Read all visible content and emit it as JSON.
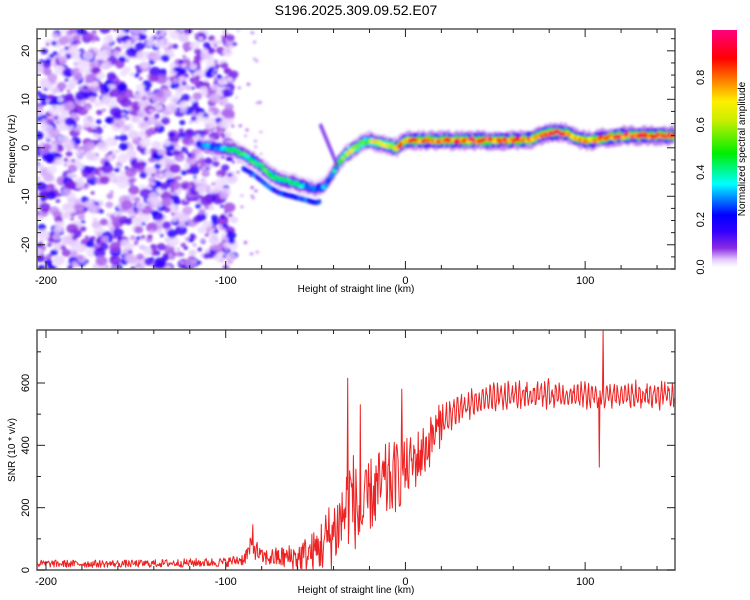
{
  "title": "S196.2025.309.09.52.E07",
  "chart_data": [
    {
      "type": "heatmap",
      "name": "spectrogram",
      "title": "S196.2025.309.09.52.E07",
      "xlabel": "Height of straight line (km)",
      "ylabel": "Frequency (Hz)",
      "xlim": [
        -205,
        150
      ],
      "ylim": [
        -25,
        24.5
      ],
      "xticks": [
        -200,
        -100,
        0,
        100
      ],
      "xtick_labels": [
        "-200",
        "-100",
        "0",
        "100"
      ],
      "xminor_step": 20,
      "yticks": [
        -20,
        -10,
        0,
        10,
        20
      ],
      "ytick_labels": [
        "-20",
        "-10",
        "0",
        "10",
        "20"
      ],
      "yminor_step": 2.5,
      "noise_region_km": [
        -205,
        -105
      ],
      "ridge": {
        "x": [
          -115,
          -110,
          -105,
          -100,
          -95,
          -90,
          -85,
          -80,
          -75,
          -70,
          -65,
          -60,
          -55,
          -50,
          -45,
          -42,
          -40,
          -37,
          -35,
          -30,
          -25,
          -20,
          -15,
          -10,
          -5,
          0,
          10,
          20,
          30,
          40,
          50,
          60,
          70,
          75,
          80,
          85,
          90,
          95,
          100,
          105,
          110,
          120,
          130,
          140,
          150
        ],
        "frequency_hz": [
          0.5,
          0.5,
          0.0,
          -0.2,
          -0.5,
          -1.5,
          -2.5,
          -4.0,
          -5.5,
          -6.5,
          -7.0,
          -7.5,
          -8.0,
          -8.5,
          -8.0,
          -6.0,
          -5.0,
          -3.0,
          -2.0,
          -0.5,
          0.8,
          1.5,
          1.0,
          0.5,
          0.0,
          1.5,
          1.5,
          1.5,
          1.5,
          1.5,
          1.5,
          1.5,
          1.8,
          2.5,
          3.0,
          3.2,
          3.0,
          2.0,
          1.5,
          1.5,
          2.0,
          2.5,
          2.5,
          2.5,
          2.5
        ],
        "amplitude": [
          0.25,
          0.3,
          0.35,
          0.4,
          0.45,
          0.5,
          0.45,
          0.5,
          0.55,
          0.5,
          0.45,
          0.5,
          0.35,
          0.3,
          0.35,
          0.3,
          0.4,
          0.55,
          0.6,
          0.7,
          0.65,
          0.6,
          0.75,
          0.7,
          0.8,
          0.85,
          0.9,
          0.88,
          0.9,
          0.95,
          0.92,
          0.88,
          0.9,
          0.95,
          0.97,
          0.95,
          0.9,
          0.85,
          0.9,
          0.85,
          0.9,
          0.95,
          0.95,
          0.95,
          0.95
        ]
      },
      "colorbar": {
        "label": "Normalized spectral amplitude",
        "range": [
          0.0,
          1.0
        ],
        "ticks": [
          0.0,
          0.2,
          0.4,
          0.6,
          0.8
        ],
        "tick_labels": [
          "0.0",
          "0.2",
          "0.4",
          "0.6",
          "0.8"
        ],
        "stops": [
          {
            "v": 0.0,
            "color": "#ffffff"
          },
          {
            "v": 0.03,
            "color": "#e6ccff"
          },
          {
            "v": 0.08,
            "color": "#8a2be2"
          },
          {
            "v": 0.15,
            "color": "#3300ff"
          },
          {
            "v": 0.22,
            "color": "#0000ff"
          },
          {
            "v": 0.3,
            "color": "#0099ff"
          },
          {
            "v": 0.35,
            "color": "#00ffff"
          },
          {
            "v": 0.48,
            "color": "#00ee00"
          },
          {
            "v": 0.62,
            "color": "#ccee00"
          },
          {
            "v": 0.7,
            "color": "#ffee00"
          },
          {
            "v": 0.78,
            "color": "#ff8800"
          },
          {
            "v": 0.88,
            "color": "#ff0000"
          },
          {
            "v": 1.0,
            "color": "#ff0080"
          }
        ]
      }
    },
    {
      "type": "line",
      "name": "snr",
      "xlabel": "Height of straight line (km)",
      "ylabel": "SNR (10 * v/v)",
      "xlim": [
        -205,
        150
      ],
      "ylim": [
        0,
        770
      ],
      "xticks": [
        -200,
        -100,
        0,
        100
      ],
      "xtick_labels": [
        "-200",
        "-100",
        "0",
        "100"
      ],
      "xminor_step": 20,
      "yticks": [
        0,
        200,
        400,
        600
      ],
      "ytick_labels": [
        "0",
        "200",
        "400",
        "600"
      ],
      "yminor_step": 100,
      "color": "#ee2222",
      "envelope": {
        "x": [
          -205,
          -150,
          -100,
          -90,
          -85,
          -80,
          -70,
          -60,
          -50,
          -45,
          -40,
          -35,
          -30,
          -25,
          -20,
          -10,
          0,
          10,
          20,
          30,
          40,
          60,
          80,
          100,
          108,
          110,
          112,
          120,
          150
        ],
        "mean": [
          20,
          20,
          25,
          35,
          80,
          40,
          40,
          40,
          60,
          90,
          120,
          170,
          250,
          150,
          240,
          280,
          320,
          380,
          470,
          520,
          540,
          560,
          565,
          560,
          560,
          560,
          560,
          560,
          560
        ],
        "spread": [
          12,
          12,
          15,
          20,
          40,
          25,
          35,
          50,
          70,
          100,
          120,
          130,
          160,
          120,
          120,
          130,
          100,
          90,
          70,
          60,
          55,
          50,
          50,
          50,
          50,
          50,
          50,
          50,
          50
        ]
      },
      "spikes": [
        {
          "x": -85,
          "y": 145
        },
        {
          "x": -32,
          "y": 615
        },
        {
          "x": -25,
          "y": 530
        },
        {
          "x": -2,
          "y": 580
        },
        {
          "x": 108,
          "y": 330
        },
        {
          "x": 110,
          "y": 770
        }
      ]
    }
  ]
}
